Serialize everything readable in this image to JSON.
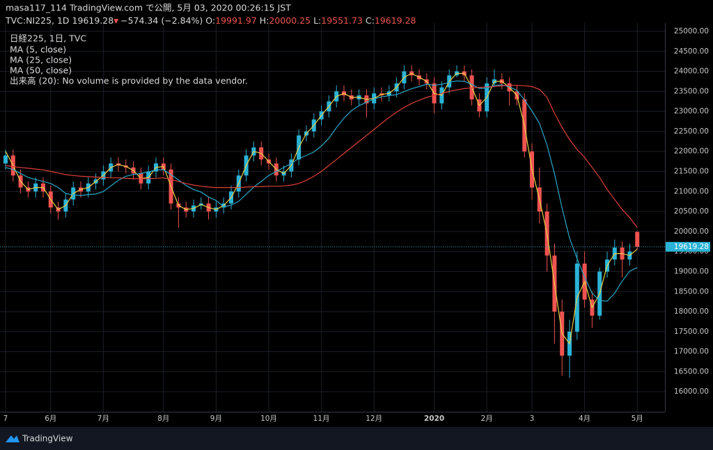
{
  "header": {
    "publisher": "masa117_114 TradingView.com で公開, 5月 03, 2020 00:26:15 JST"
  },
  "footer": {
    "brand": "TradingView"
  },
  "chart_data": {
    "type": "candlestick",
    "symbol": "TVC:NI225, 1D",
    "change": {
      "value": -574.34,
      "label": "−574.34"
    },
    "change_percent": {
      "value": -2.84,
      "label": "(−2.84%)"
    },
    "ohlc_labels": [
      "O:",
      "H:",
      "L:",
      "C:"
    ],
    "legend_title": "日経225, 1日, TVC",
    "volume_note": "出来高 (20): No volume is provided by the data vendor.",
    "up_color": "#2bb3d6",
    "down_color": "#ef5350",
    "grid": true,
    "ylim": [
      15500,
      25200
    ],
    "yticks": [
      {
        "value": 16000,
        "label": "16000.00"
      },
      {
        "value": 16500,
        "label": "16500.00"
      },
      {
        "value": 17000,
        "label": "17000.00"
      },
      {
        "value": 17500,
        "label": "17500.00"
      },
      {
        "value": 18000,
        "label": "18000.00"
      },
      {
        "value": 18500,
        "label": "18500.00"
      },
      {
        "value": 19000,
        "label": "19000.00"
      },
      {
        "value": 19500,
        "label": "19500.00"
      },
      {
        "value": 20000,
        "label": "20000.00"
      },
      {
        "value": 20500,
        "label": "20500.00"
      },
      {
        "value": 21000,
        "label": "21000.00"
      },
      {
        "value": 21500,
        "label": "21500.00"
      },
      {
        "value": 22000,
        "label": "22000.00"
      },
      {
        "value": 22500,
        "label": "22500.00"
      },
      {
        "value": 23000,
        "label": "23000.00"
      },
      {
        "value": 23500,
        "label": "23500.00"
      },
      {
        "value": 24000,
        "label": "24000.00"
      },
      {
        "value": 24500,
        "label": "24500.00"
      },
      {
        "value": 25000,
        "label": "25000.00"
      }
    ],
    "categories": [
      "7",
      null,
      null,
      null,
      null,
      null,
      "6月",
      null,
      null,
      null,
      null,
      null,
      null,
      "7月",
      null,
      null,
      null,
      null,
      null,
      null,
      null,
      "8月",
      null,
      null,
      null,
      null,
      null,
      null,
      "9月",
      null,
      null,
      null,
      null,
      null,
      null,
      "10月",
      null,
      null,
      null,
      null,
      null,
      null,
      "11月",
      null,
      null,
      null,
      null,
      null,
      null,
      "12月",
      null,
      null,
      null,
      null,
      null,
      null,
      null,
      "2020",
      null,
      null,
      null,
      null,
      null,
      null,
      "2月",
      null,
      null,
      null,
      null,
      null,
      "3",
      null,
      null,
      null,
      null,
      null,
      null,
      "4月",
      null,
      null,
      null,
      null,
      null,
      null,
      "5月"
    ],
    "candles": [
      [
        21700,
        22050,
        21550,
        21900
      ],
      [
        21900,
        22050,
        21250,
        21400
      ],
      [
        21400,
        21550,
        20950,
        21100
      ],
      [
        21100,
        21250,
        20850,
        21000
      ],
      [
        21000,
        21350,
        20850,
        21200
      ],
      [
        21200,
        21350,
        20850,
        21000
      ],
      [
        21000,
        21150,
        20450,
        20600
      ],
      [
        20600,
        20750,
        20300,
        20500
      ],
      [
        20500,
        20950,
        20350,
        20800
      ],
      [
        20800,
        21250,
        20650,
        21100
      ],
      [
        21100,
        21250,
        20850,
        21000
      ],
      [
        21000,
        21350,
        20850,
        21200
      ],
      [
        21200,
        21450,
        21050,
        21300
      ],
      [
        21300,
        21650,
        21150,
        21500
      ],
      [
        21500,
        21850,
        21350,
        21700
      ],
      [
        21700,
        21850,
        21500,
        21650
      ],
      [
        21650,
        21800,
        21450,
        21600
      ],
      [
        21600,
        21750,
        21300,
        21450
      ],
      [
        21450,
        21600,
        21050,
        21200
      ],
      [
        21200,
        21650,
        21050,
        21500
      ],
      [
        21500,
        21850,
        21350,
        21700
      ],
      [
        21700,
        21850,
        21400,
        21550
      ],
      [
        21550,
        21700,
        20550,
        20700
      ],
      [
        20700,
        20850,
        20100,
        20600
      ],
      [
        20600,
        20750,
        20350,
        20500
      ],
      [
        20500,
        20800,
        20350,
        20650
      ],
      [
        20650,
        20850,
        20550,
        20700
      ],
      [
        20700,
        20850,
        20300,
        20500
      ],
      [
        20500,
        20750,
        20350,
        20600
      ],
      [
        20600,
        20850,
        20450,
        20700
      ],
      [
        20700,
        21150,
        20550,
        21000
      ],
      [
        21000,
        21550,
        20850,
        21400
      ],
      [
        21400,
        22050,
        21250,
        21900
      ],
      [
        21900,
        22250,
        21750,
        22100
      ],
      [
        22100,
        22250,
        21650,
        21800
      ],
      [
        21800,
        21950,
        21550,
        21700
      ],
      [
        21700,
        21850,
        21250,
        21400
      ],
      [
        21400,
        21650,
        21250,
        21500
      ],
      [
        21500,
        21950,
        21350,
        21800
      ],
      [
        21800,
        22550,
        21650,
        22400
      ],
      [
        22400,
        22650,
        22250,
        22500
      ],
      [
        22500,
        22950,
        22350,
        22800
      ],
      [
        22800,
        23150,
        22650,
        23000
      ],
      [
        23000,
        23400,
        22850,
        23250
      ],
      [
        23250,
        23650,
        23100,
        23500
      ],
      [
        23500,
        23650,
        23250,
        23400
      ],
      [
        23400,
        23550,
        23150,
        23300
      ],
      [
        23300,
        23550,
        23150,
        23400
      ],
      [
        23400,
        23550,
        22850,
        23200
      ],
      [
        23200,
        23600,
        23050,
        23450
      ],
      [
        23450,
        23600,
        23250,
        23400
      ],
      [
        23400,
        23650,
        23250,
        23500
      ],
      [
        23500,
        23850,
        23350,
        23700
      ],
      [
        23700,
        24150,
        23550,
        24000
      ],
      [
        24000,
        24150,
        23750,
        23900
      ],
      [
        23900,
        24050,
        23650,
        23800
      ],
      [
        23800,
        23950,
        23550,
        23700
      ],
      [
        23700,
        23850,
        22950,
        23200
      ],
      [
        23200,
        23750,
        23050,
        23600
      ],
      [
        23600,
        24050,
        23450,
        23900
      ],
      [
        23900,
        24150,
        23850,
        24000
      ],
      [
        24000,
        24150,
        23750,
        23900
      ],
      [
        23900,
        24050,
        23150,
        23300
      ],
      [
        23300,
        23450,
        22850,
        23000
      ],
      [
        23000,
        23850,
        22850,
        23700
      ],
      [
        23700,
        24050,
        23650,
        23800
      ],
      [
        23800,
        23950,
        23550,
        23700
      ],
      [
        23700,
        23850,
        23150,
        23500
      ],
      [
        23500,
        23650,
        23150,
        23300
      ],
      [
        23300,
        23450,
        21850,
        22000
      ],
      [
        22000,
        22200,
        20800,
        21100
      ],
      [
        21100,
        21600,
        20200,
        20500
      ],
      [
        20500,
        20700,
        19000,
        19400
      ],
      [
        19400,
        19700,
        17200,
        18000
      ],
      [
        18000,
        18300,
        16400,
        16900
      ],
      [
        16900,
        17800,
        16350,
        17500
      ],
      [
        17500,
        19500,
        17300,
        19200
      ],
      [
        19200,
        19500,
        18100,
        18300
      ],
      [
        18300,
        18500,
        17600,
        17900
      ],
      [
        17900,
        19100,
        17800,
        19000
      ],
      [
        19000,
        19500,
        18850,
        19300
      ],
      [
        19300,
        19800,
        19150,
        19600
      ],
      [
        19600,
        19750,
        18850,
        19300
      ],
      [
        19300,
        19700,
        19150,
        19500
      ],
      [
        19991.97,
        20000.25,
        19551.73,
        19619.28
      ]
    ],
    "series": [
      {
        "name": "MA (5, close)",
        "color": "#e8cf4a",
        "values": [
          22000,
          21650,
          21250,
          21050,
          21100,
          21100,
          20800,
          20550,
          20650,
          20950,
          21050,
          21100,
          21250,
          21400,
          21600,
          21675,
          21625,
          21525,
          21325,
          21350,
          21600,
          21625,
          21125,
          20650,
          20550,
          20575,
          20675,
          20600,
          20550,
          20650,
          20850,
          21200,
          21650,
          22000,
          21950,
          21750,
          21550,
          21450,
          21650,
          22100,
          22450,
          22650,
          22900,
          23125,
          23375,
          23450,
          23350,
          23350,
          23300,
          23325,
          23425,
          23450,
          23600,
          23850,
          23950,
          23850,
          23750,
          23450,
          23400,
          23750,
          23950,
          23950,
          23600,
          23150,
          23350,
          23750,
          23750,
          23600,
          23400,
          22650,
          21550,
          20800,
          19950,
          18700,
          17450,
          17200,
          18350,
          18750,
          18100,
          18450,
          19150,
          19450,
          19450,
          19400,
          19560
        ]
      },
      {
        "name": "MA (25, close)",
        "color": "#2aa8c8",
        "values": [
          21600,
          21550,
          21450,
          21350,
          21300,
          21250,
          21200,
          21100,
          20950,
          20912,
          20900,
          20925,
          20937,
          21000,
          21137,
          21281,
          21381,
          21425,
          21450,
          21487,
          21537,
          21544,
          21419,
          21287,
          21150,
          21050,
          20987,
          20862,
          20775,
          20619,
          20656,
          20756,
          20931,
          21112,
          21250,
          21400,
          21500,
          21600,
          21700,
          21825,
          21900,
          21987,
          22137,
          22331,
          22594,
          22831,
          23019,
          23144,
          23231,
          23312,
          23362,
          23394,
          23419,
          23494,
          23569,
          23619,
          23681,
          23650,
          23675,
          23725,
          23762,
          23750,
          23675,
          23575,
          23575,
          23650,
          23662,
          23612,
          23525,
          23287,
          23012,
          22700,
          22162,
          21437,
          20587,
          19837,
          19325,
          18862,
          18462,
          18275,
          18262,
          18462,
          18762,
          19012,
          19100
        ]
      },
      {
        "name": "MA (50, close)",
        "color": "#e0403a",
        "values": [
          21650,
          21620,
          21600,
          21580,
          21560,
          21540,
          21500,
          21460,
          21420,
          21400,
          21380,
          21370,
          21360,
          21350,
          21340,
          21340,
          21330,
          21320,
          21320,
          21320,
          21330,
          21340,
          21300,
          21250,
          21200,
          21160,
          21130,
          21110,
          21100,
          21100,
          21100,
          21100,
          21110,
          21120,
          21120,
          21130,
          21130,
          21140,
          21160,
          21200,
          21280,
          21380,
          21500,
          21650,
          21800,
          21950,
          22100,
          22250,
          22400,
          22550,
          22700,
          22850,
          22980,
          23100,
          23200,
          23280,
          23350,
          23400,
          23450,
          23500,
          23540,
          23570,
          23590,
          23600,
          23610,
          23620,
          23640,
          23650,
          23650,
          23640,
          23620,
          23550,
          23350,
          22950,
          22600,
          22300,
          22050,
          21850,
          21600,
          21350,
          21050,
          20800,
          20550,
          20350,
          20100
        ]
      }
    ]
  }
}
